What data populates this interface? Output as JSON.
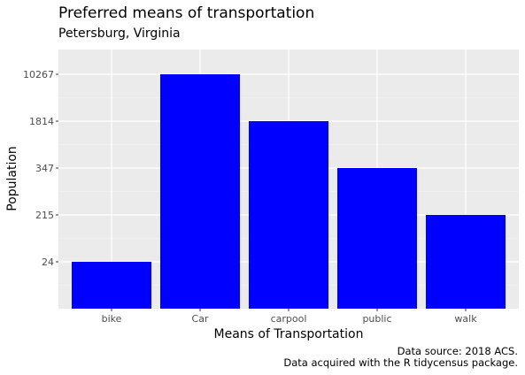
{
  "chart_data": {
    "type": "bar",
    "title": "Preferred means of transportation",
    "subtitle": "Petersburg, Virginia",
    "xlabel": "Means of Transportation",
    "ylabel": "Population",
    "categories": [
      "bike",
      "Car",
      "carpool",
      "public",
      "walk"
    ],
    "values": [
      24,
      10267,
      1814,
      347,
      215
    ],
    "y_ticks": [
      "24",
      "215",
      "347",
      "1814",
      "10267"
    ],
    "y_scale": "ordinal",
    "grid": true,
    "bar_color": "#0000FF",
    "panel_background": "#EBEBEB",
    "caption": [
      "Data source: 2018 ACS.",
      "Data acquired with the R tidycensus package."
    ]
  }
}
